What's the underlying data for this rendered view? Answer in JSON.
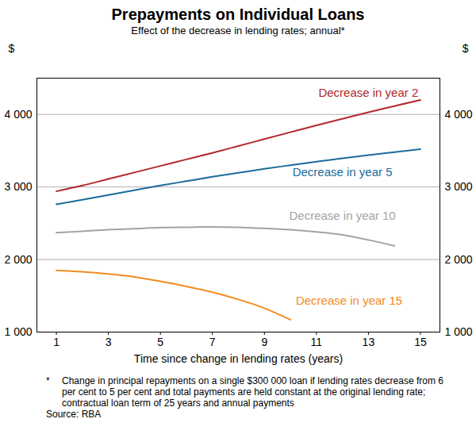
{
  "chart_data": {
    "type": "line",
    "title": "Prepayments on Individual Loans",
    "subtitle": "Effect of the decrease in lending rates; annual*",
    "x_label": "Time since change in lending rates (years)",
    "y_label": "$",
    "y2_label": "$",
    "footnote": {
      "marker": "*",
      "text": "Change in principal repayments on a single $300 000 loan if lending rates decrease from 6 per cent to 5 per cent and total payments are held constant at the original lending rate; contractual loan term of 25 years and annual payments"
    },
    "source": "Source: RBA",
    "x": [
      1,
      2,
      3,
      4,
      5,
      6,
      7,
      8,
      9,
      10,
      11,
      12,
      13,
      14,
      15
    ],
    "xlim": [
      0.25,
      15.75
    ],
    "xticks": [
      1,
      3,
      5,
      7,
      9,
      11,
      13,
      15
    ],
    "ylim": [
      1000,
      4500
    ],
    "yticks": [
      {
        "value": 1000,
        "label": "1 000"
      },
      {
        "value": 2000,
        "label": "2 000"
      },
      {
        "value": 3000,
        "label": "3 000"
      },
      {
        "value": 4000,
        "label": "4 000"
      }
    ],
    "grid": true,
    "series": [
      {
        "name": "Decrease in year 2",
        "color": "#b3282d",
        "values": [
          2940,
          3020,
          3110,
          3200,
          3290,
          3380,
          3470,
          3565,
          3660,
          3755,
          3850,
          3940,
          4030,
          4115,
          4200
        ]
      },
      {
        "name": "Decrease in year 5",
        "color": "#1c6b9a",
        "values": [
          2760,
          2825,
          2890,
          2955,
          3020,
          3080,
          3140,
          3195,
          3250,
          3300,
          3350,
          3395,
          3440,
          3480,
          3520
        ]
      },
      {
        "name": "Decrease in year 10",
        "color": "#a3a3a3",
        "values": [
          2370,
          2390,
          2410,
          2425,
          2440,
          2445,
          2450,
          2445,
          2430,
          2410,
          2380,
          2340,
          2270,
          2190,
          null
        ]
      },
      {
        "name": "Decrease in year 15",
        "color": "#f28c1e",
        "values": [
          1850,
          1830,
          1800,
          1760,
          1700,
          1630,
          1550,
          1450,
          1330,
          1170,
          null,
          null,
          null,
          null,
          null
        ]
      }
    ]
  }
}
